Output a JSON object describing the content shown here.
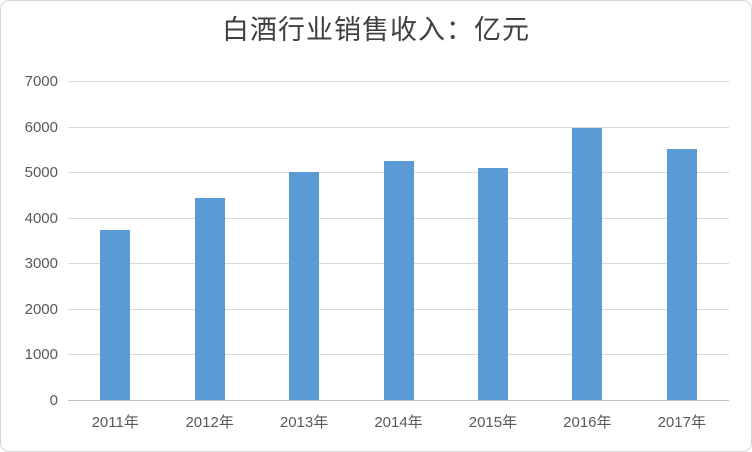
{
  "chart_data": {
    "type": "bar",
    "title": "白酒行业销售收入：亿元",
    "categories": [
      "2011年",
      "2012年",
      "2013年",
      "2014年",
      "2015年",
      "2016年",
      "2017年"
    ],
    "values": [
      3760,
      4460,
      5030,
      5270,
      5120,
      5990,
      5520
    ],
    "xlabel": "",
    "ylabel": "",
    "ylim": [
      0,
      7000
    ],
    "ytick_step": 1000,
    "ytick_labels": [
      "0",
      "1000",
      "2000",
      "3000",
      "4000",
      "5000",
      "6000",
      "7000"
    ],
    "grid": true,
    "legend": "none",
    "colors": {
      "bar": "#5b9bd5",
      "gridline": "#d9d9d9",
      "axis_line": "#bfbfbf",
      "tick_label": "#595959",
      "title": "#404040",
      "frame_border": "#d6d6d6",
      "background": "#ffffff"
    }
  }
}
